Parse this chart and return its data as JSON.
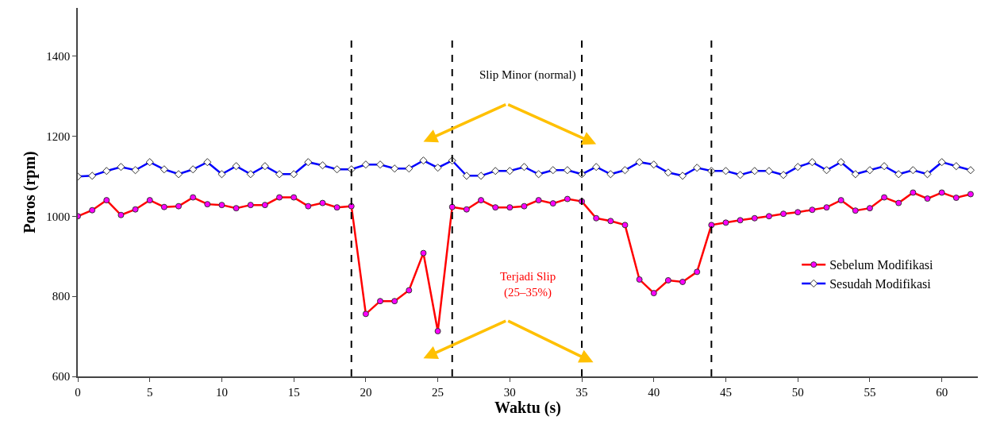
{
  "chart_data": {
    "type": "line",
    "xlabel": "Waktu (s)",
    "ylabel": "Poros (rpm)",
    "x": [
      0,
      1,
      2,
      3,
      4,
      5,
      6,
      7,
      8,
      9,
      10,
      11,
      12,
      13,
      14,
      15,
      16,
      17,
      18,
      19,
      20,
      21,
      22,
      23,
      24,
      25,
      26,
      27,
      28,
      29,
      30,
      31,
      32,
      33,
      34,
      35,
      36,
      37,
      38,
      39,
      40,
      41,
      42,
      43,
      44,
      45,
      46,
      47,
      48,
      49,
      50,
      51,
      52,
      53,
      54,
      55,
      56,
      57,
      58,
      59,
      60,
      61,
      62
    ],
    "series": [
      {
        "name": "Sebelum Modifikasi",
        "color": "#ff0000",
        "marker": "circle",
        "values": [
          1000,
          1015,
          1040,
          1003,
          1017,
          1040,
          1023,
          1025,
          1047,
          1030,
          1028,
          1020,
          1028,
          1028,
          1047,
          1047,
          1025,
          1033,
          1022,
          1025,
          756,
          788,
          788,
          815,
          908,
          713,
          1023,
          1017,
          1040,
          1022,
          1022,
          1025,
          1040,
          1032,
          1043,
          1037,
          995,
          988,
          978,
          842,
          808,
          840,
          836,
          861,
          978,
          984,
          990,
          995,
          1000,
          1006,
          1010,
          1016,
          1022,
          1040,
          1014,
          1020,
          1047,
          1033,
          1059,
          1044,
          1059,
          1046,
          1055
        ]
      },
      {
        "name": "Sesudah Modifikasi",
        "color": "#0000ff",
        "marker": "diamond",
        "values": [
          1099,
          1101,
          1113,
          1123,
          1115,
          1135,
          1117,
          1105,
          1117,
          1135,
          1105,
          1125,
          1105,
          1125,
          1105,
          1105,
          1135,
          1127,
          1117,
          1117,
          1129,
          1129,
          1119,
          1119,
          1139,
          1121,
          1139,
          1101,
          1101,
          1113,
          1113,
          1123,
          1105,
          1115,
          1115,
          1105,
          1123,
          1105,
          1115,
          1135,
          1129,
          1109,
          1101,
          1121,
          1113,
          1113,
          1103,
          1113,
          1113,
          1103,
          1123,
          1135,
          1115,
          1135,
          1105,
          1115,
          1125,
          1105,
          1115,
          1105,
          1135,
          1125,
          1115
        ]
      }
    ],
    "xlim": [
      0,
      62.5
    ],
    "xticks": [
      0,
      5,
      10,
      15,
      20,
      25,
      30,
      35,
      40,
      45,
      50,
      55,
      60
    ],
    "ylim": [
      600,
      1520
    ],
    "yticks": [
      600,
      800,
      1000,
      1200,
      1400
    ],
    "grid": false,
    "legend": "bottom right",
    "ref_lines": [
      {
        "axis": "x",
        "value": 19,
        "color": "#000000",
        "line_style": "dashed"
      },
      {
        "axis": "x",
        "value": 26,
        "color": "#000000",
        "line_style": "dashed"
      },
      {
        "axis": "x",
        "value": 35,
        "color": "#000000",
        "line_style": "dashed"
      },
      {
        "axis": "x",
        "value": 44,
        "color": "#000000",
        "line_style": "dashed"
      }
    ],
    "annotations": [
      "Slip Minor (normal)",
      "Terjadi Slip\n(25–35%)"
    ]
  }
}
